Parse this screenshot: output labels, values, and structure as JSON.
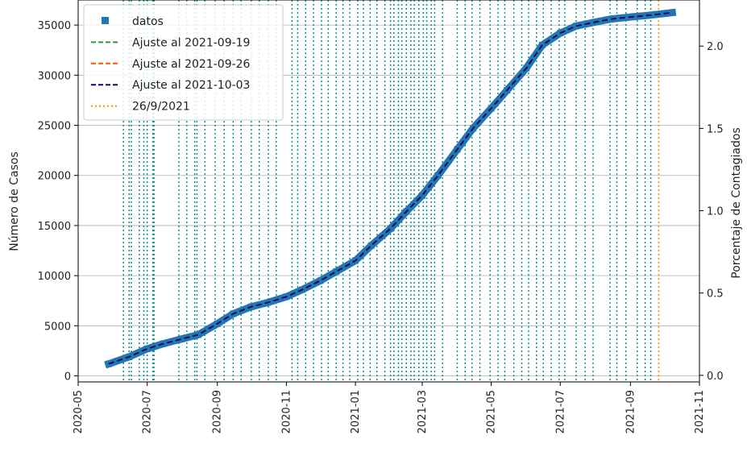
{
  "chart_data": {
    "type": "line",
    "title": "",
    "xlabel": "",
    "ylabel": "Número de Casos",
    "y2label": "Porcentaje de Contagiados",
    "x_ticks": [
      "2020-05",
      "2020-07",
      "2020-09",
      "2020-11",
      "2021-01",
      "2021-03",
      "2021-05",
      "2021-07",
      "2021-09",
      "2021-11"
    ],
    "x_range": [
      "2020-05-01",
      "2021-11-01"
    ],
    "ylim": [
      -600,
      37500
    ],
    "y_ticks": [
      0,
      5000,
      10000,
      15000,
      20000,
      25000,
      30000,
      35000
    ],
    "y2lim": [
      -0.04,
      2.28
    ],
    "y2_ticks": [
      "0.0",
      "0.5",
      "1.0",
      "1.5",
      "2.0"
    ],
    "grid": "horizontal",
    "legend_position": "upper-left",
    "colors": {
      "datos": "#1f77b4",
      "fit_0919": "#2ca02c",
      "fit_0926": "#ff5500",
      "fit_1003": "#0a0a6e",
      "marker_line": "#ff8c00",
      "vertical_lines": "#0a8f8f"
    },
    "series": [
      {
        "name": "datos",
        "style": "square-markers",
        "x": [
          "2020-05-28",
          "2020-06-15",
          "2020-07-01",
          "2020-07-15",
          "2020-08-01",
          "2020-08-15",
          "2020-09-01",
          "2020-09-15",
          "2020-10-01",
          "2020-10-15",
          "2020-11-01",
          "2020-11-15",
          "2020-12-01",
          "2020-12-15",
          "2021-01-01",
          "2021-01-15",
          "2021-02-01",
          "2021-02-15",
          "2021-03-01",
          "2021-03-15",
          "2021-04-01",
          "2021-04-15",
          "2021-05-01",
          "2021-05-15",
          "2021-06-01",
          "2021-06-15",
          "2021-07-01",
          "2021-07-15",
          "2021-08-01",
          "2021-08-15",
          "2021-09-01",
          "2021-09-15",
          "2021-10-01",
          "2021-10-08"
        ],
        "y": [
          1200,
          1900,
          2700,
          3200,
          3700,
          4100,
          5200,
          6200,
          6900,
          7300,
          7900,
          8600,
          9500,
          10400,
          11500,
          13000,
          14700,
          16400,
          18000,
          20000,
          22600,
          24700,
          26700,
          28500,
          30700,
          33000,
          34200,
          34900,
          35300,
          35600,
          35800,
          35950,
          36150,
          36250
        ]
      },
      {
        "name": "Ajuste al 2021-09-19",
        "style": "dashed",
        "x": [
          "2020-05-28",
          "2020-06-15",
          "2020-07-01",
          "2020-07-15",
          "2020-08-01",
          "2020-08-15",
          "2020-09-01",
          "2020-09-15",
          "2020-10-01",
          "2020-10-15",
          "2020-11-01",
          "2020-11-15",
          "2020-12-01",
          "2020-12-15",
          "2021-01-01",
          "2021-01-15",
          "2021-02-01",
          "2021-02-15",
          "2021-03-01",
          "2021-03-15",
          "2021-04-01",
          "2021-04-15",
          "2021-05-01",
          "2021-05-15",
          "2021-06-01",
          "2021-06-15",
          "2021-07-01",
          "2021-07-15",
          "2021-08-01",
          "2021-08-15",
          "2021-09-01",
          "2021-09-15",
          "2021-10-01",
          "2021-10-08"
        ],
        "y": [
          1200,
          1900,
          2700,
          3200,
          3700,
          4100,
          5200,
          6200,
          6900,
          7300,
          7900,
          8600,
          9500,
          10400,
          11500,
          13000,
          14700,
          16400,
          18000,
          20000,
          22600,
          24700,
          26700,
          28500,
          30700,
          33000,
          34200,
          34900,
          35300,
          35600,
          35800,
          35950,
          36150,
          36250
        ]
      },
      {
        "name": "Ajuste al 2021-09-26",
        "style": "dashed",
        "x": [
          "2020-05-28",
          "2020-06-15",
          "2020-07-01",
          "2020-07-15",
          "2020-08-01",
          "2020-08-15",
          "2020-09-01",
          "2020-09-15",
          "2020-10-01",
          "2020-10-15",
          "2020-11-01",
          "2020-11-15",
          "2020-12-01",
          "2020-12-15",
          "2021-01-01",
          "2021-01-15",
          "2021-02-01",
          "2021-02-15",
          "2021-03-01",
          "2021-03-15",
          "2021-04-01",
          "2021-04-15",
          "2021-05-01",
          "2021-05-15",
          "2021-06-01",
          "2021-06-15",
          "2021-07-01",
          "2021-07-15",
          "2021-08-01",
          "2021-08-15",
          "2021-09-01",
          "2021-09-15",
          "2021-10-01",
          "2021-10-08"
        ],
        "y": [
          1200,
          1900,
          2700,
          3200,
          3700,
          4100,
          5200,
          6200,
          6900,
          7300,
          7900,
          8600,
          9500,
          10400,
          11500,
          13000,
          14700,
          16400,
          18000,
          20000,
          22600,
          24700,
          26700,
          28500,
          30700,
          33000,
          34200,
          34900,
          35300,
          35600,
          35800,
          35950,
          36150,
          36250
        ]
      },
      {
        "name": "Ajuste al 2021-10-03",
        "style": "dashed",
        "x": [
          "2020-05-28",
          "2020-06-15",
          "2020-07-01",
          "2020-07-15",
          "2020-08-01",
          "2020-08-15",
          "2020-09-01",
          "2020-09-15",
          "2020-10-01",
          "2020-10-15",
          "2020-11-01",
          "2020-11-15",
          "2020-12-01",
          "2020-12-15",
          "2021-01-01",
          "2021-01-15",
          "2021-02-01",
          "2021-02-15",
          "2021-03-01",
          "2021-03-15",
          "2021-04-01",
          "2021-04-15",
          "2021-05-01",
          "2021-05-15",
          "2021-06-01",
          "2021-06-15",
          "2021-07-01",
          "2021-07-15",
          "2021-08-01",
          "2021-08-15",
          "2021-09-01",
          "2021-09-15",
          "2021-10-01",
          "2021-10-08"
        ],
        "y": [
          1200,
          1900,
          2700,
          3200,
          3700,
          4100,
          5200,
          6200,
          6900,
          7300,
          7900,
          8600,
          9500,
          10400,
          11500,
          13000,
          14700,
          16400,
          18000,
          20000,
          22600,
          24700,
          26700,
          28500,
          30700,
          33000,
          34200,
          34900,
          35300,
          35600,
          35800,
          35950,
          36150,
          36250
        ]
      }
    ],
    "marker_line": {
      "name": "26/9/2021",
      "x": "2021-09-26"
    },
    "vertical_lines": [
      "2020-06-10",
      "2020-06-15",
      "2020-06-17",
      "2020-06-24",
      "2020-06-28",
      "2020-07-01",
      "2020-07-06",
      "2020-07-07",
      "2020-07-29",
      "2020-08-05",
      "2020-08-12",
      "2020-08-14",
      "2020-08-21",
      "2020-08-30",
      "2020-09-07",
      "2020-09-15",
      "2020-09-22",
      "2020-10-01",
      "2020-10-08",
      "2020-10-16",
      "2020-10-23",
      "2020-11-06",
      "2020-11-11",
      "2020-11-18",
      "2020-11-25",
      "2020-12-02",
      "2020-12-08",
      "2020-12-15",
      "2020-12-21",
      "2020-12-27",
      "2021-01-03",
      "2021-01-08",
      "2021-01-14",
      "2021-01-20",
      "2021-01-27",
      "2021-02-01",
      "2021-02-04",
      "2021-02-08",
      "2021-02-11",
      "2021-02-15",
      "2021-02-19",
      "2021-02-22",
      "2021-02-26",
      "2021-03-02",
      "2021-03-05",
      "2021-03-09",
      "2021-03-12",
      "2021-03-19",
      "2021-04-01",
      "2021-04-08",
      "2021-04-14",
      "2021-04-21",
      "2021-04-30",
      "2021-05-07",
      "2021-05-13",
      "2021-05-21",
      "2021-05-28",
      "2021-06-03",
      "2021-06-10",
      "2021-06-16",
      "2021-06-23",
      "2021-06-30",
      "2021-07-05",
      "2021-07-15",
      "2021-07-23",
      "2021-07-30",
      "2021-08-14",
      "2021-08-20",
      "2021-08-28",
      "2021-09-07",
      "2021-09-14",
      "2021-09-19"
    ]
  }
}
